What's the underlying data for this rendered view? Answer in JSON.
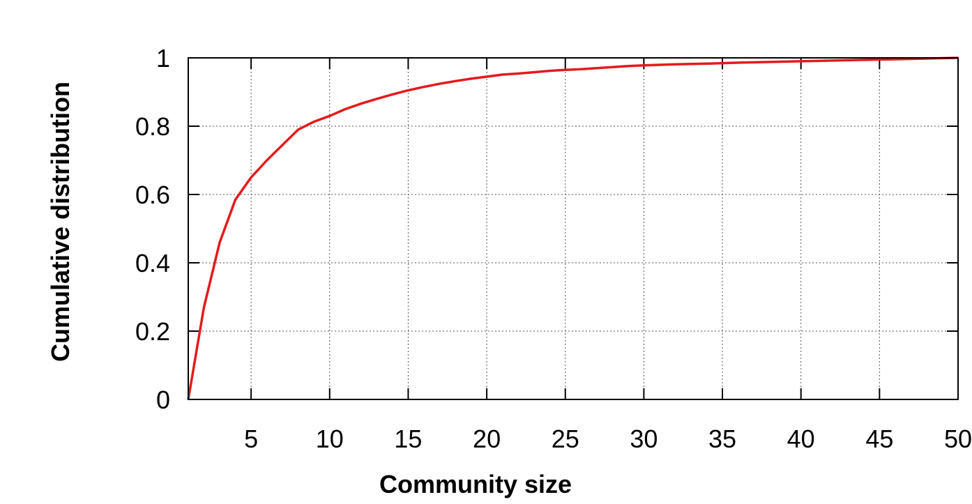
{
  "chart_data": {
    "type": "line",
    "title": "",
    "xlabel": "Community size",
    "ylabel": "Cumulative distribution",
    "xlim": [
      1,
      50
    ],
    "ylim": [
      0,
      1
    ],
    "x_ticks": [
      5,
      10,
      15,
      20,
      25,
      30,
      35,
      40,
      45,
      50
    ],
    "y_ticks": [
      0,
      0.2,
      0.4,
      0.6,
      0.8,
      1
    ],
    "y_tick_labels": [
      "0",
      "0.2",
      "0.4",
      "0.6",
      "0.8",
      "1"
    ],
    "grid": true,
    "series": [
      {
        "color": "#e41a1c",
        "x": [
          1,
          2,
          3,
          4,
          5,
          6,
          7,
          8,
          9,
          10,
          11,
          12,
          13,
          14,
          15,
          16,
          17,
          18,
          19,
          20,
          21,
          22,
          23,
          24,
          25,
          26,
          27,
          28,
          29,
          30,
          32,
          34,
          36,
          38,
          40,
          42,
          44,
          46,
          48,
          50
        ],
        "y": [
          0.0,
          0.27,
          0.46,
          0.585,
          0.65,
          0.7,
          0.745,
          0.79,
          0.813,
          0.83,
          0.85,
          0.866,
          0.88,
          0.893,
          0.905,
          0.915,
          0.924,
          0.932,
          0.939,
          0.945,
          0.951,
          0.954,
          0.958,
          0.962,
          0.965,
          0.967,
          0.97,
          0.973,
          0.976,
          0.978,
          0.981,
          0.983,
          0.986,
          0.988,
          0.99,
          0.992,
          0.994,
          0.996,
          0.998,
          1.0
        ]
      }
    ]
  }
}
